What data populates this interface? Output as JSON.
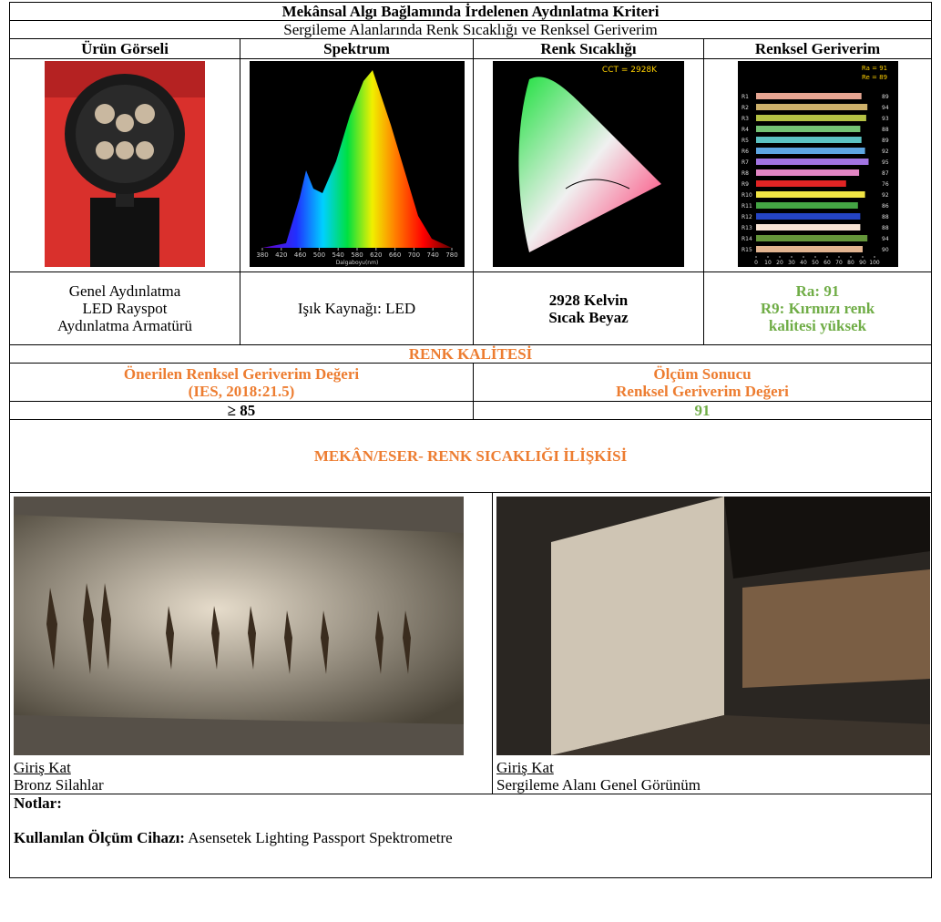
{
  "header": {
    "title": "Mekânsal Algı Bağlamında İrdelenen Aydınlatma Kriteri",
    "subtitle": "Sergileme Alanlarında Renk Sıcaklığı ve Renksel Geriverim"
  },
  "columns": [
    "Ürün Görseli",
    "Spektrum",
    "Renk Sıcaklığı",
    "Renksel Geriverim"
  ],
  "descriptions": [
    [
      "Genel Aydınlatma",
      "LED Rayspot",
      "Aydınlatma Armatürü"
    ],
    [
      "Işık Kaynağı: LED"
    ],
    [
      "2928 Kelvin",
      "Sıcak Beyaz"
    ],
    [
      "Ra: 91",
      "R9: Kırmızı renk",
      "kalitesi yüksek"
    ]
  ],
  "spectrum": {
    "xticks": [
      380,
      420,
      460,
      500,
      540,
      580,
      620,
      660,
      700,
      740,
      780
    ],
    "xlim": [
      380,
      780
    ],
    "xlabel": "Dalgaboyu(nm)"
  },
  "chromaticity": {
    "label": "CCT = 2928K"
  },
  "cri_chart": {
    "type": "bar",
    "categories": [
      "R1",
      "R2",
      "R3",
      "R4",
      "R5",
      "R6",
      "R7",
      "R8",
      "R9",
      "R10",
      "R11",
      "R12",
      "R13",
      "R14",
      "R15"
    ],
    "values": [
      89,
      94,
      93,
      88,
      89,
      92,
      95,
      87,
      76,
      92,
      86,
      88,
      88,
      94,
      90
    ],
    "colors": [
      "#e6a592",
      "#cdb06a",
      "#b5c244",
      "#74c274",
      "#5cc2c2",
      "#5ea6e2",
      "#a274e2",
      "#e286c4",
      "#e02424",
      "#f0e444",
      "#44a444",
      "#2444c4",
      "#f8e4d4",
      "#64963a",
      "#e2b490"
    ],
    "ra": "Ra = 91",
    "re": "Re = 89",
    "xlim": [
      0,
      100
    ],
    "xticks": [
      0,
      10,
      20,
      30,
      40,
      50,
      60,
      70,
      80,
      90,
      100
    ]
  },
  "quality": {
    "title": "RENK KALİTESİ",
    "recommended": {
      "label": [
        "Önerilen Renksel Geriverim Değeri",
        "(IES, 2018:21.5)"
      ],
      "value": "≥ 85"
    },
    "measured": {
      "label": [
        "Ölçüm Sonucu",
        "Renksel Geriverim Değeri"
      ],
      "value": "91"
    }
  },
  "relation": {
    "title": "MEKÂN/ESER- RENK SICAKLIĞI İLİŞKİSİ",
    "photos": [
      {
        "floor": "Giriş Kat",
        "caption": "Bronz Silahlar"
      },
      {
        "floor": "Giriş Kat",
        "caption": "Sergileme Alanı Genel Görünüm"
      }
    ]
  },
  "notes": {
    "title": "Notlar:",
    "device_label": "Kullanılan Ölçüm Cihazı:",
    "device": "Asensetek Lighting Passport Spektrometre"
  }
}
